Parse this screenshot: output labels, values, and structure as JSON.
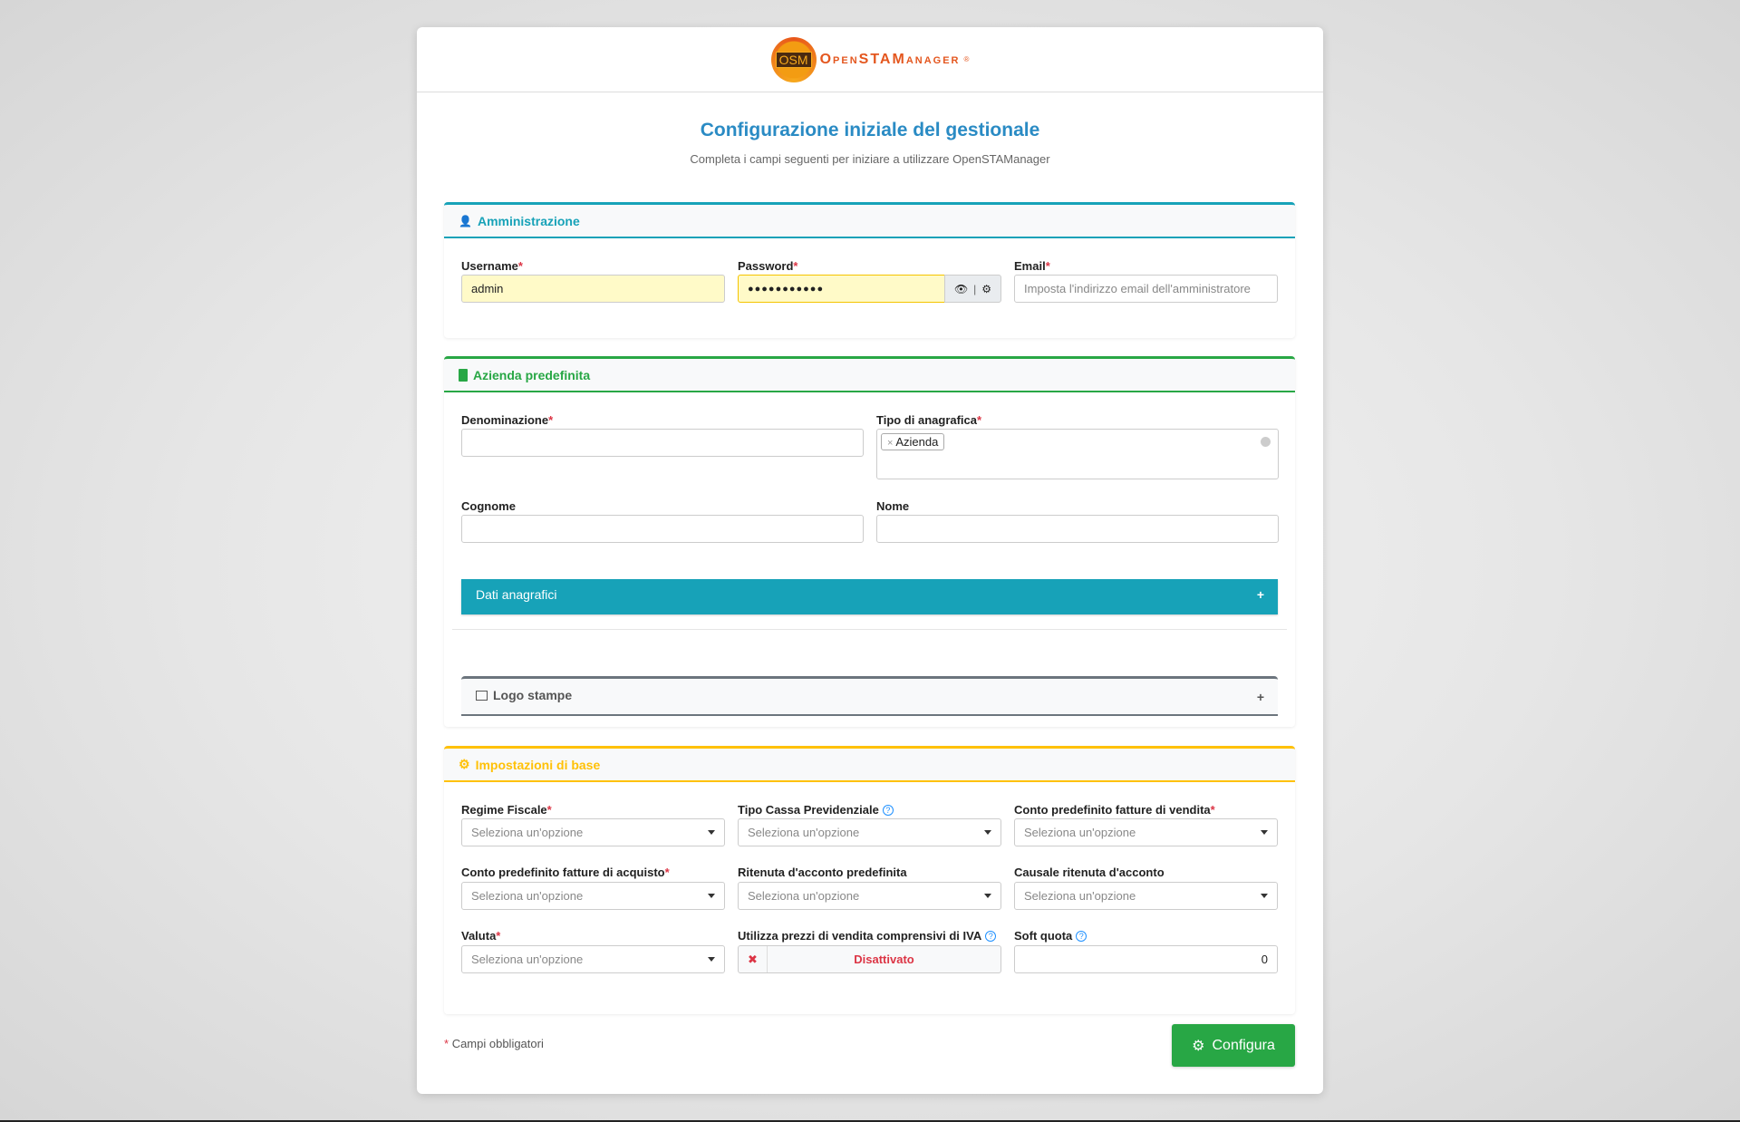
{
  "logo": {
    "badge": "OSM",
    "text": "OpenSTAManager",
    "reg": "®"
  },
  "title": "Configurazione iniziale del gestionale",
  "subtitle": "Completa i campi seguenti per iniziare a utilizzare OpenSTAManager",
  "colors": {
    "info": "#17a2b8",
    "success": "#28a745",
    "warning": "#ffc107",
    "title": "#2a8bc4",
    "danger": "#dc3545"
  },
  "admin": {
    "title": "Amministrazione",
    "icon": "user-icon",
    "username": {
      "label": "Username",
      "value": "admin"
    },
    "password": {
      "label": "Password",
      "value": "●●●●●●●●●●●"
    },
    "email": {
      "label": "Email",
      "placeholder": "Imposta l'indirizzo email dell'amministratore"
    }
  },
  "azienda": {
    "title": "Azienda predefinita",
    "icon": "building-icon",
    "denominazione": {
      "label": "Denominazione"
    },
    "tipo": {
      "label": "Tipo di anagrafica",
      "tag": "Azienda",
      "tag_remove": "×"
    },
    "cognome": {
      "label": "Cognome"
    },
    "nome": {
      "label": "Nome"
    },
    "dati_anagrafici": "Dati anagrafici",
    "logo_stampe": "Logo stampe",
    "expand": "+"
  },
  "impostazioni": {
    "title": "Impostazioni di base",
    "icon": "cogs-icon",
    "placeholder": "Seleziona un'opzione",
    "regime": "Regime Fiscale",
    "cassa": "Tipo Cassa Previdenziale",
    "conto_vendita": "Conto predefinito fatture di vendita",
    "conto_acquisto": "Conto predefinito fatture di acquisto",
    "ritenuta": "Ritenuta d'acconto predefinita",
    "causale": "Causale ritenuta d'acconto",
    "valuta": "Valuta",
    "prezzi_iva": {
      "label": "Utilizza prezzi di vendita comprensivi di IVA",
      "state": "Disattivato",
      "icon": "✖"
    },
    "soft_quota": {
      "label": "Soft quota",
      "value": "0"
    },
    "help": "?"
  },
  "footer": {
    "required_mark": "*",
    "required_note": "Campi obbligatori",
    "submit": "Configura"
  },
  "req": "*"
}
